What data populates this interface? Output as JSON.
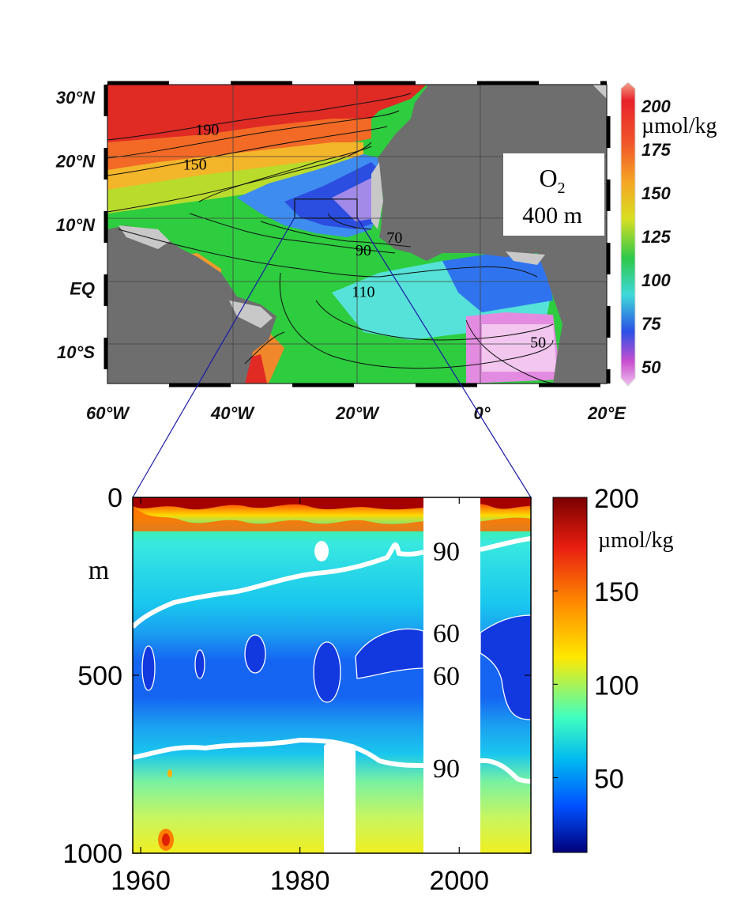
{
  "chart_data": [
    {
      "type": "heatmap",
      "subtype": "map",
      "variable": "O2",
      "depth_label": "400 m",
      "units": "µmol/kg",
      "x_tick_labels": [
        "60°W",
        "40°W",
        "20°W",
        "0°",
        "20°E"
      ],
      "y_tick_labels": [
        "30°N",
        "20°N",
        "10°N",
        "EQ",
        "10°S"
      ],
      "x_ticks": [
        -60,
        -40,
        -20,
        0,
        20
      ],
      "y_ticks": [
        30,
        20,
        10,
        0,
        -10
      ],
      "xlim": [
        -60,
        20
      ],
      "ylim": [
        -15,
        32
      ],
      "colorbar": {
        "ticks": [
          200,
          175,
          150,
          125,
          100,
          75,
          50
        ],
        "units": "µmol/kg"
      },
      "contour_labels": [
        {
          "text": "190",
          "lon": -44,
          "lat": 25
        },
        {
          "text": "150",
          "lon": -46,
          "lat": 19.5
        },
        {
          "text": "90",
          "lon": -19,
          "lat": 6
        },
        {
          "text": "70",
          "lon": -14,
          "lat": 8
        },
        {
          "text": "110",
          "lon": -19,
          "lat": -0.5
        },
        {
          "text": "50",
          "lon": 9,
          "lat": -8.5
        }
      ],
      "box_region": {
        "lon": [
          -30,
          -20
        ],
        "lat": [
          11,
          14
        ]
      }
    },
    {
      "type": "heatmap",
      "subtype": "time-depth",
      "xlim": [
        1959,
        2009
      ],
      "ylim": [
        0,
        1000
      ],
      "x_ticks": [
        1960,
        1980,
        2000
      ],
      "y_ticks": [
        0,
        500,
        1000
      ],
      "ylabel": "m",
      "units": "µmol/kg",
      "colorbar": {
        "ticks": [
          200,
          150,
          100,
          50
        ],
        "range": [
          10,
          200
        ],
        "units": "µmol/kg"
      },
      "contour_labels": [
        {
          "text": "90",
          "depth": 150
        },
        {
          "text": "60",
          "depth": 380
        },
        {
          "text": "60",
          "depth": 500
        },
        {
          "text": "90",
          "depth": 760
        }
      ],
      "data_gaps": [
        {
          "x": [
            1995,
            2002
          ],
          "depth": [
            0,
            1000
          ]
        },
        {
          "x": [
            1983,
            1987
          ],
          "depth": [
            690,
            1000
          ]
        }
      ]
    }
  ],
  "labels": {
    "map_box_var": "O",
    "map_box_sub": "2",
    "map_box_depth": "400 m",
    "map_cb_units": "µmol/kg",
    "sect_cb_units": "µmol/kg",
    "sect_ylabel": "m"
  },
  "colors": {
    "land": "#6e6e6e",
    "coast_shelf": "#c8c8c8"
  }
}
